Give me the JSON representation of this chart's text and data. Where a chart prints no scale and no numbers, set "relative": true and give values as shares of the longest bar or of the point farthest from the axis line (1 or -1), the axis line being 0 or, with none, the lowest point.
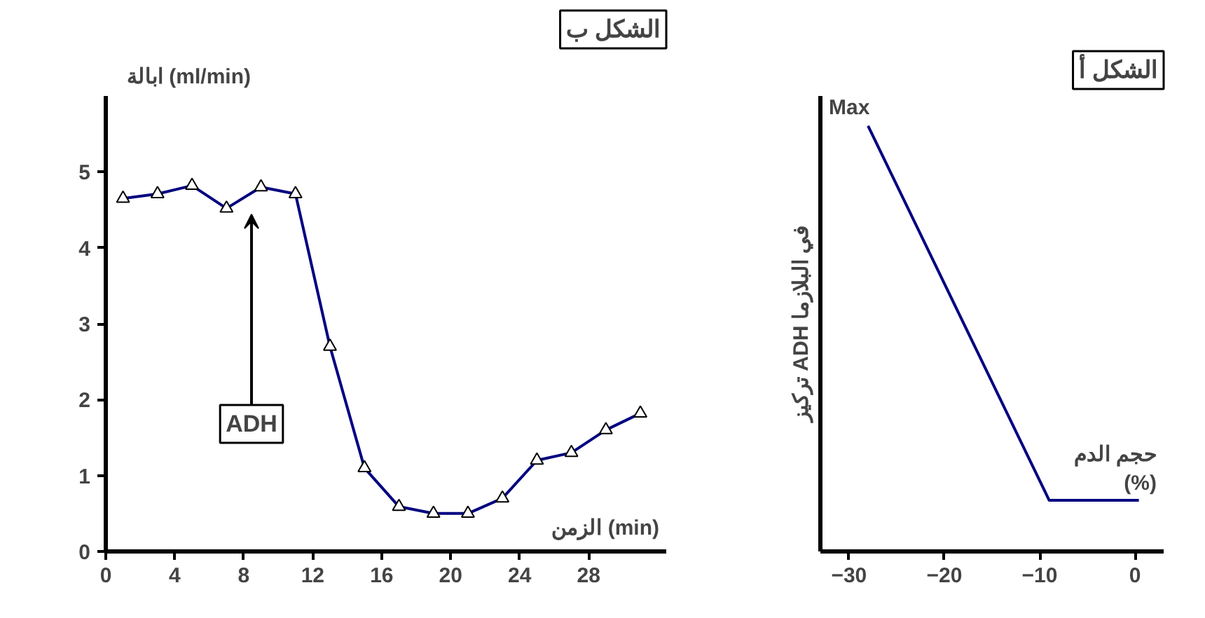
{
  "chart_data": [
    {
      "type": "line",
      "title": "الشكل ب",
      "xlabel": "الزمن (min)",
      "ylabel": "ابالة (ml/min)",
      "marker": "triangle",
      "grid": false,
      "xlim": [
        0,
        32.5
      ],
      "ylim": [
        0,
        6
      ],
      "xticks": [
        0,
        4,
        8,
        12,
        16,
        20,
        24,
        28
      ],
      "yticks": [
        0,
        1,
        2,
        3,
        4,
        5
      ],
      "x": [
        1,
        3,
        5,
        7,
        9,
        11,
        13,
        15,
        17,
        19,
        21,
        23,
        25,
        27,
        29,
        31
      ],
      "series": [
        {
          "color": "#000080",
          "values": [
            4.65,
            4.71,
            4.82,
            4.52,
            4.8,
            4.71,
            2.7,
            1.1,
            0.59,
            0.5,
            0.5,
            0.7,
            1.2,
            1.3,
            1.6,
            1.82
          ]
        }
      ],
      "annotations": [
        "ADH"
      ]
    },
    {
      "type": "line",
      "title": "الشكل أ",
      "xlabel": "حجم الدم\n(%)",
      "ylabel": "تركيز ADH في البلازما",
      "marker": "none",
      "grid": false,
      "relative": true,
      "xlim": [
        -33,
        3
      ],
      "xticks": [
        -30,
        -20,
        -10,
        0
      ],
      "x": [
        -28,
        -9,
        0.4
      ],
      "series": [
        {
          "color": "#000080",
          "values": [
            1,
            0.12,
            0.12
          ]
        }
      ],
      "annotations": [
        "Max",
        "0"
      ]
    }
  ]
}
